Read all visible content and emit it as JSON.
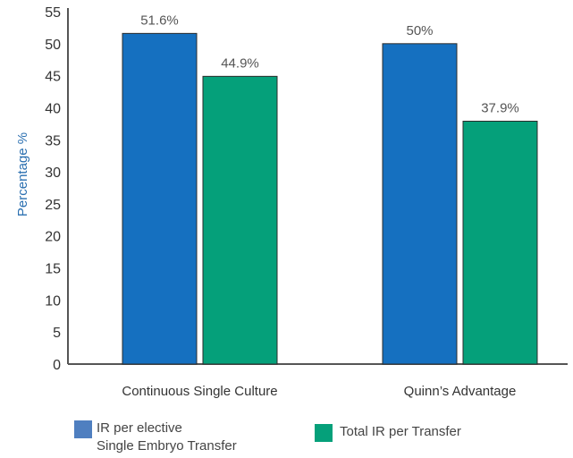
{
  "chart_data": {
    "type": "bar",
    "categories": [
      "Continuous Single Culture",
      "Quinn’s Advantage"
    ],
    "series": [
      {
        "name": "IR per elective Single Embryo Transfer",
        "legend_lines": [
          "IR per elective",
          "Single Embryo Transfer"
        ],
        "values": [
          51.6,
          50
        ],
        "labels": [
          "51.6%",
          "50%"
        ],
        "color": "#1570c0"
      },
      {
        "name": "Total IR per Transfer",
        "legend_lines": [
          "Total IR per Transfer"
        ],
        "values": [
          44.9,
          37.9
        ],
        "labels": [
          "44.9%",
          "37.9%"
        ],
        "color": "#05a07a"
      }
    ],
    "ylabel": "Percentage %",
    "ylim": [
      0,
      55
    ],
    "yticks": [
      0,
      5,
      10,
      15,
      20,
      25,
      30,
      35,
      40,
      45,
      50,
      55
    ],
    "grid": false,
    "legend_position": "bottom",
    "axis_color": "#555555",
    "ylabel_color": "#2a6fb0"
  }
}
